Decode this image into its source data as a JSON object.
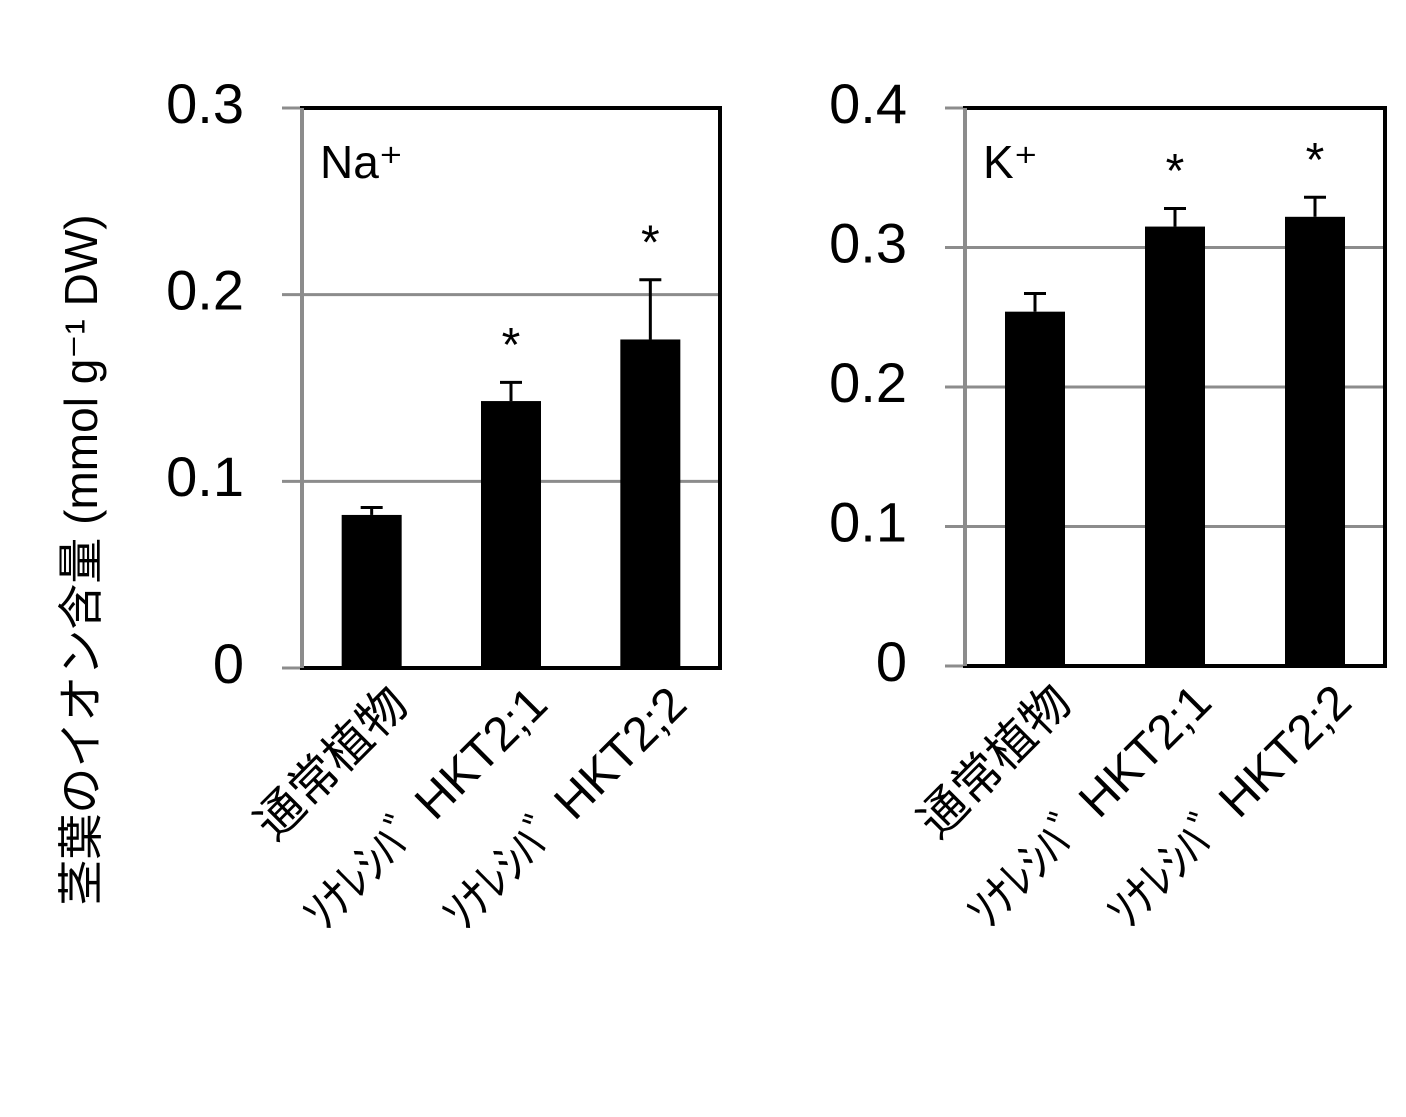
{
  "chart_data": [
    {
      "type": "bar",
      "y_label": "茎葉のイオン含量 (mmol g⁻¹ DW)",
      "panel_label": "Na⁺",
      "categories": [
        "通常植物",
        "ｿﾅﾚｼﾊﾞ HKT2;1",
        "ｿﾅﾚｼﾊﾞ HKT2;2"
      ],
      "values": [
        0.082,
        0.143,
        0.176
      ],
      "errors": [
        0.004,
        0.01,
        0.032
      ],
      "annotations": [
        null,
        "*",
        "*"
      ],
      "color": "#000000",
      "ylim": [
        0,
        0.3
      ],
      "yticks": [
        0,
        0.1,
        0.2,
        0.3
      ],
      "grid": true
    },
    {
      "type": "bar",
      "panel_label": "K⁺",
      "categories": [
        "通常植物",
        "ｿﾅﾚｼﾊﾞ HKT2;1",
        "ｿﾅﾚｼﾊﾞ HKT2;2"
      ],
      "values": [
        0.254,
        0.315,
        0.322
      ],
      "errors": [
        0.013,
        0.013,
        0.014
      ],
      "annotations": [
        null,
        "*",
        "*"
      ],
      "color": "#000000",
      "ylim": [
        0,
        0.4
      ],
      "yticks": [
        0,
        0.1,
        0.2,
        0.3,
        0.4
      ],
      "grid": true
    }
  ]
}
